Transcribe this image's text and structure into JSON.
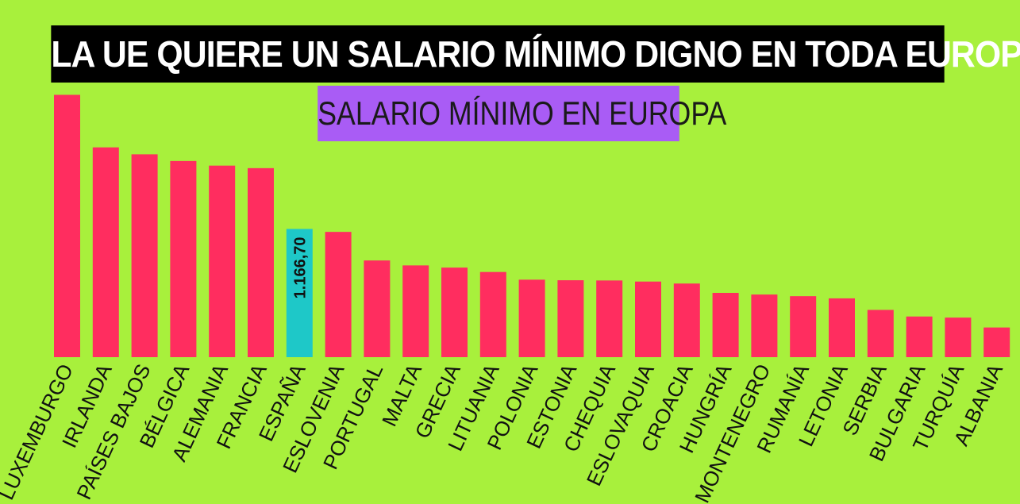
{
  "header": {
    "title": "LA UE QUIERE UN SALARIO MÍNIMO DIGNO EN TODA EUROPA",
    "subtitle": "SALARIO MÍNIMO EN EUROPA"
  },
  "colors": {
    "background": "#a8f03c",
    "bar": "#ff2d5f",
    "highlight": "#1ec8c8",
    "title_bg": "#000000",
    "subtitle_bg": "#a95cf5"
  },
  "chart_data": {
    "type": "bar",
    "title": "SALARIO MÍNIMO EN EUROPA",
    "xlabel": "",
    "ylabel": "",
    "grid": false,
    "legend": "none",
    "ylim": [
      0,
      2600
    ],
    "categories": [
      "LUXEMBURGO",
      "IRLANDA",
      "PAÍSES BAJOS",
      "BÉLGICA",
      "ALEMANIA",
      "FRANCIA",
      "ESPAÑA",
      "ESLOVENIA",
      "PORTUGAL",
      "MALTA",
      "GRECIA",
      "LITUANIA",
      "POLONIA",
      "ESTONIA",
      "CHEQUIA",
      "ESLOVAQUIA",
      "CROACIA",
      "HUNGRÍA",
      "MONTENEGRO",
      "RUMANÍA",
      "LETONIA",
      "SERBIA",
      "BULGARIA",
      "TURQUÍA",
      "ALBANIA"
    ],
    "values": [
      2387,
      1909,
      1846,
      1785,
      1743,
      1720,
      1166.7,
      1140,
      880,
      835,
      815,
      775,
      705,
      700,
      698,
      688,
      670,
      585,
      570,
      555,
      535,
      430,
      370,
      360,
      270
    ],
    "highlight_index": 6,
    "data_labels": [
      {
        "category": "ESPAÑA",
        "text": "1.166,70"
      }
    ]
  }
}
